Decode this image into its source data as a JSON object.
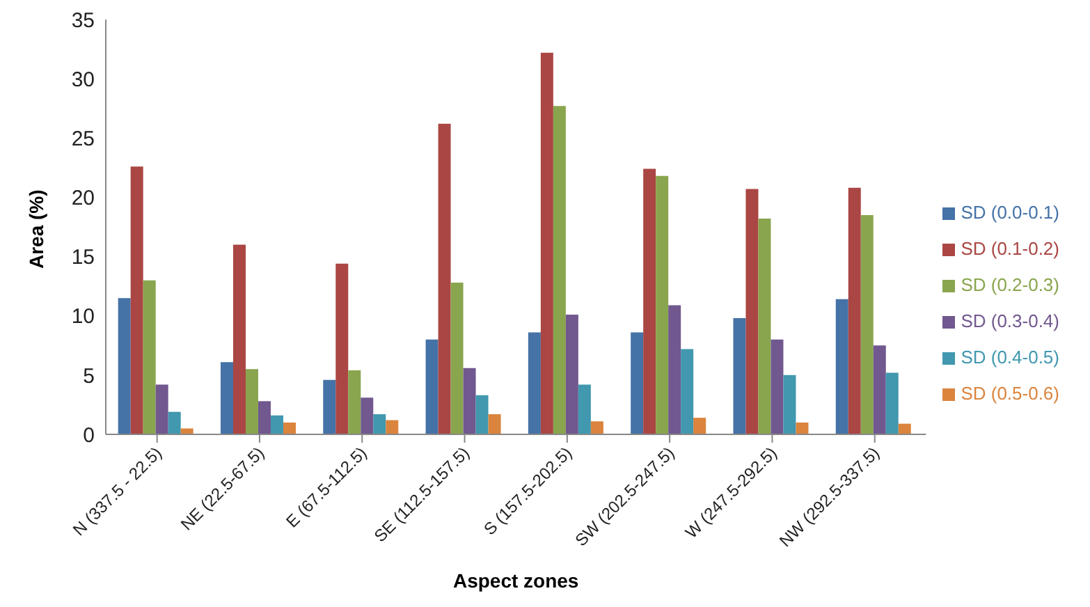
{
  "chart_data": {
    "type": "bar",
    "xlabel": "Aspect zones",
    "ylabel": "Area (%)",
    "categories": [
      "N (337.5 - 22.5)",
      "NE (22.5-67.5)",
      "E (67.5-112.5)",
      "SE (112.5-157.5)",
      "S (157.5-202.5)",
      "SW (202.5-247.5)",
      "W (247.5-292.5)",
      "NW (292.5-337.5)"
    ],
    "series": [
      {
        "name": "SD (0.0-0.1)",
        "color": "#4572a7",
        "values": [
          11.5,
          6.1,
          4.6,
          8.0,
          8.6,
          8.6,
          9.8,
          11.4
        ]
      },
      {
        "name": "SD (0.1-0.2)",
        "color": "#aa4643",
        "values": [
          22.6,
          16.0,
          14.4,
          26.2,
          32.2,
          22.4,
          20.7,
          20.8
        ]
      },
      {
        "name": "SD (0.2-0.3)",
        "color": "#89a54e",
        "values": [
          13.0,
          5.5,
          5.4,
          12.8,
          27.7,
          21.8,
          18.2,
          18.5
        ]
      },
      {
        "name": "SD (0.3-0.4)",
        "color": "#71588f",
        "values": [
          4.2,
          2.8,
          3.1,
          5.6,
          10.1,
          10.9,
          8.0,
          7.5
        ]
      },
      {
        "name": "SD (0.4-0.5)",
        "color": "#4198af",
        "values": [
          1.9,
          1.6,
          1.7,
          3.3,
          4.2,
          7.2,
          5.0,
          5.2
        ]
      },
      {
        "name": "SD (0.5-0.6)",
        "color": "#db843d",
        "values": [
          0.5,
          1.0,
          1.2,
          1.7,
          1.1,
          1.4,
          1.0,
          0.9
        ]
      }
    ],
    "ylim": [
      0,
      35
    ],
    "yticks": [
      0,
      5,
      10,
      15,
      20,
      25,
      30,
      35
    ],
    "grid": false,
    "legend": "right"
  }
}
